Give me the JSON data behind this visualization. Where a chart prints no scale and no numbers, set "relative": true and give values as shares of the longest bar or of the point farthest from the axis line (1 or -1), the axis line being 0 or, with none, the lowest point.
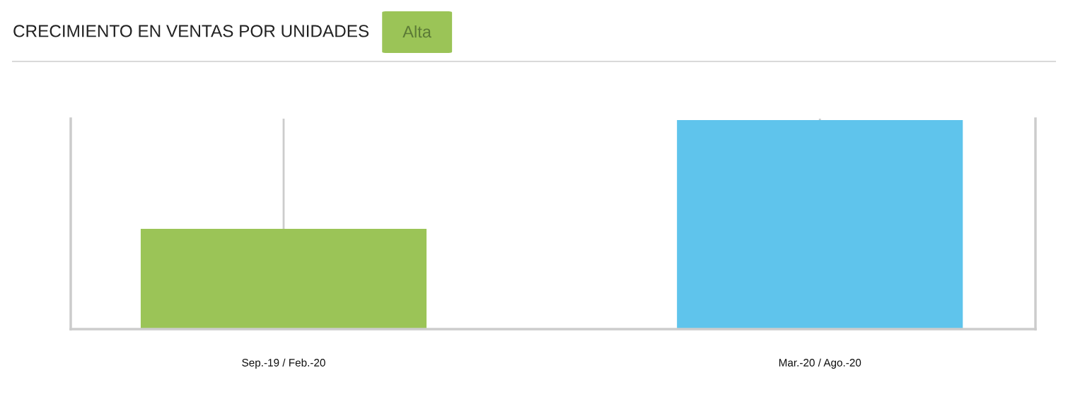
{
  "chart_data": {
    "type": "bar",
    "title": "CRECIMIENTO EN VENTAS POR UNIDADES",
    "annotations": [
      "Alta"
    ],
    "categories": [
      "Sep.-19 / Feb.-20",
      "Mar.-20 / Ago.-20"
    ],
    "values": [
      0.48,
      1
    ],
    "colors": [
      "#9bc457",
      "#5fc4ec"
    ],
    "relative": true,
    "grid": "x",
    "tick_labels": "x"
  }
}
